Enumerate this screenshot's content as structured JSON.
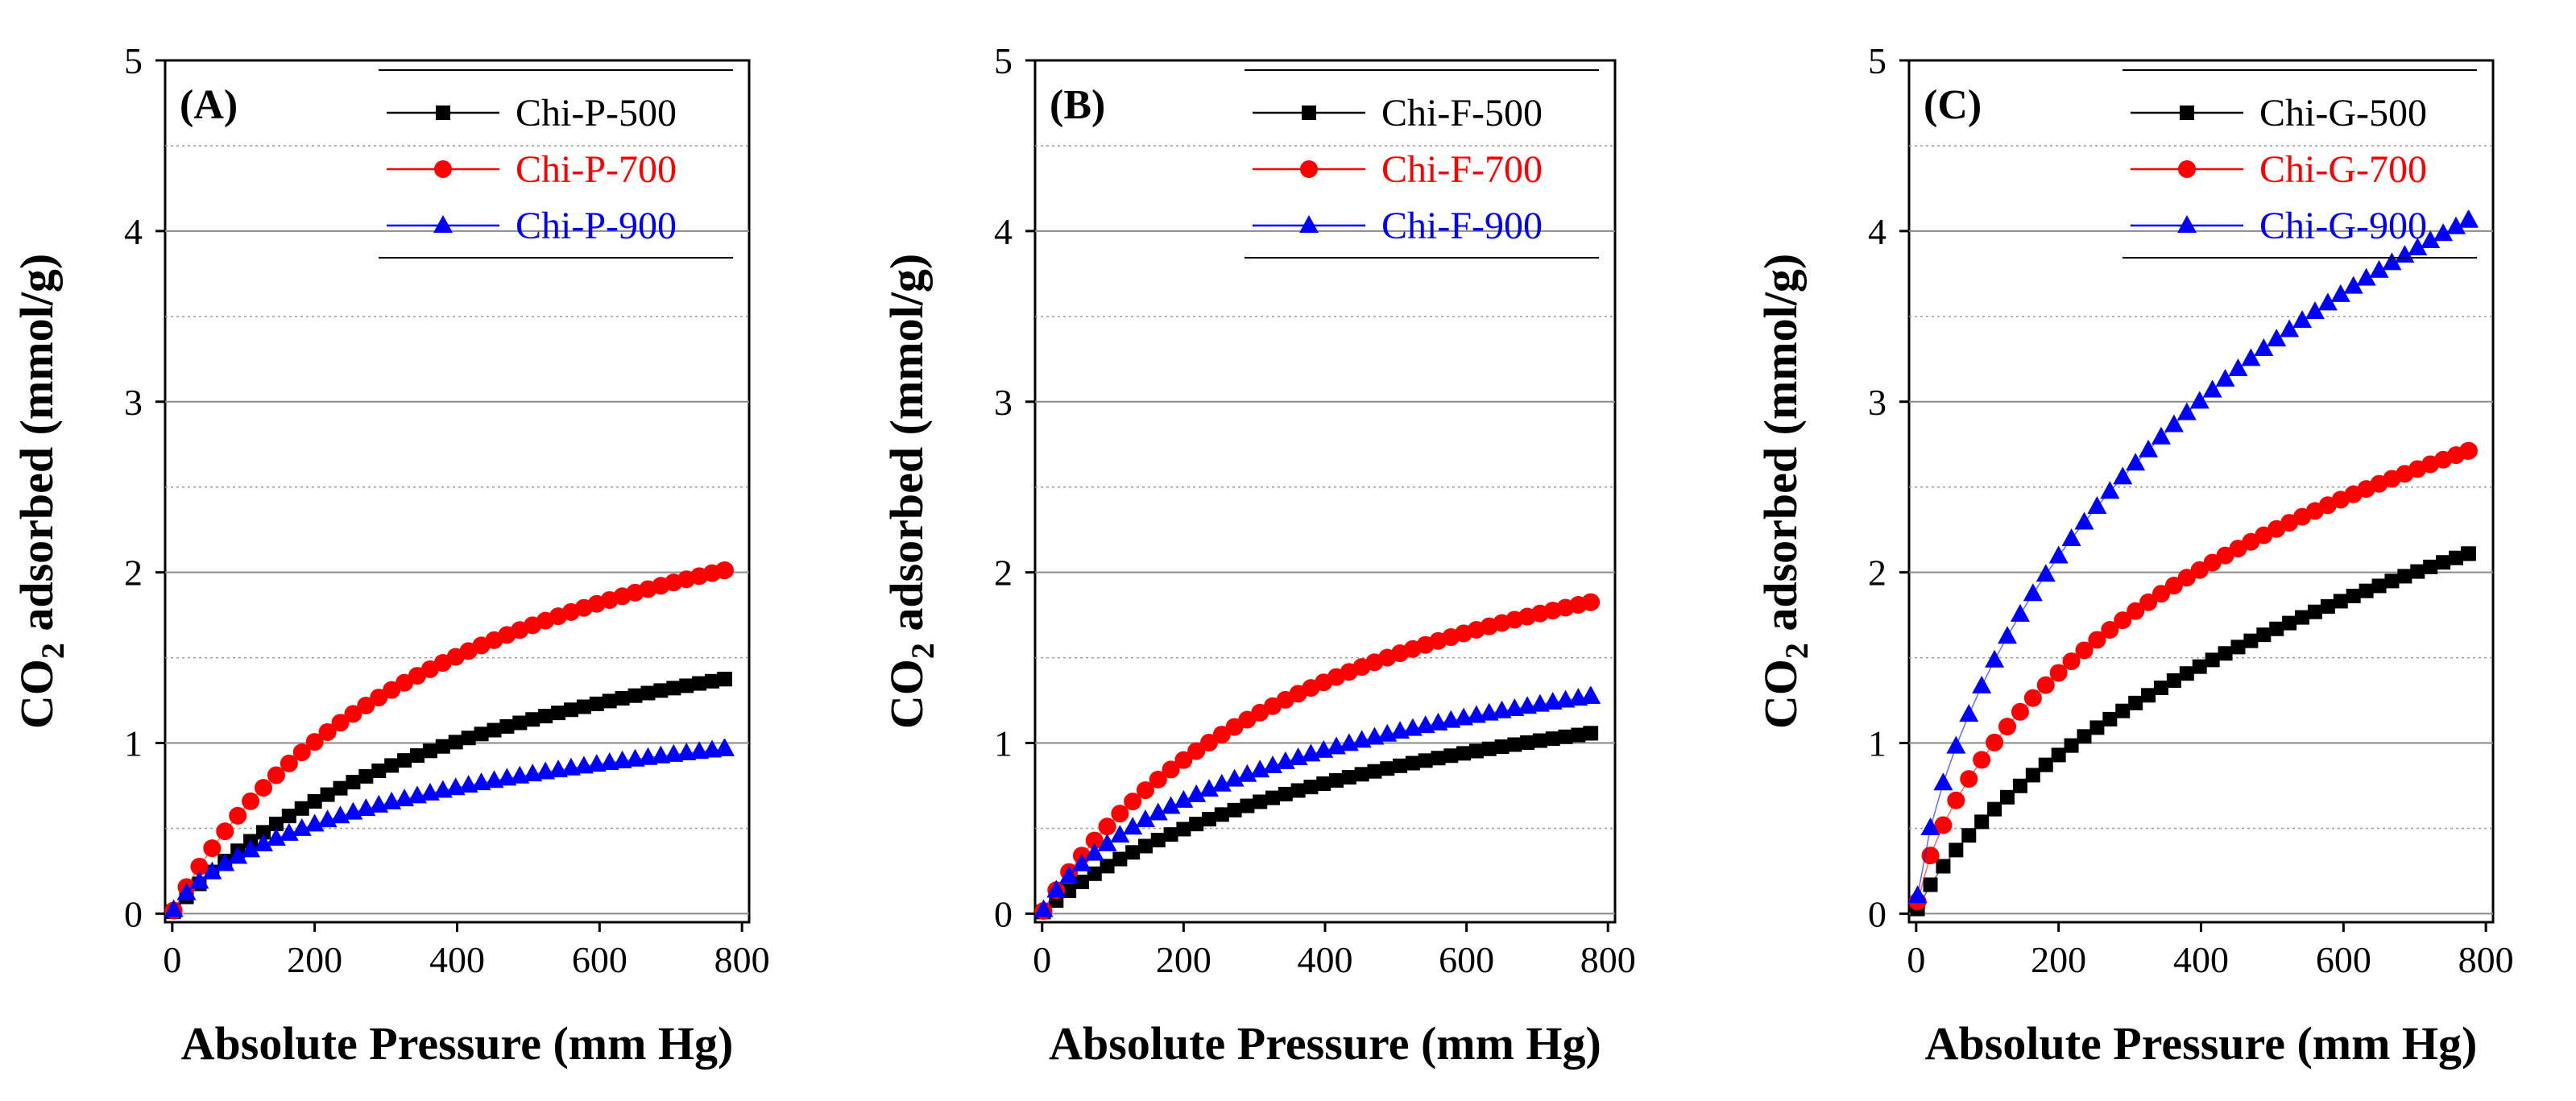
{
  "chart_data": [
    {
      "type": "scatter",
      "panel_label": "(A)",
      "xlabel": "Absolute Pressure (mm Hg)",
      "ylabel_prefix": "CO",
      "ylabel_sub": "2",
      "ylabel_suffix": " adsorbed (mmol/g)",
      "xlim": [
        -10,
        810
      ],
      "ylim": [
        -0.05,
        5
      ],
      "xticks": [
        0,
        200,
        400,
        600,
        800
      ],
      "yticks": [
        0,
        1,
        2,
        3,
        4,
        5
      ],
      "grid": "horizontal",
      "legend_position": "top-right",
      "series": [
        {
          "name": "Chi-P-500",
          "color": "#000000",
          "marker": "square",
          "qmax": 2.35,
          "b": 0.00185,
          "n": 0.95
        },
        {
          "name": "Chi-P-700",
          "color": "#ff0000",
          "marker": "circle",
          "qmax": 3.25,
          "b": 0.00215,
          "n": 0.95
        },
        {
          "name": "Chi-P-900",
          "color": "#0000ff",
          "marker": "triangle",
          "qmax": 1.85,
          "b": 0.00145,
          "n": 0.75
        }
      ]
    },
    {
      "type": "scatter",
      "panel_label": "(B)",
      "xlabel": "Absolute Pressure (mm Hg)",
      "ylabel_prefix": "CO",
      "ylabel_sub": "2",
      "ylabel_suffix": " adsorbed (mmol/g)",
      "xlim": [
        -10,
        810
      ],
      "ylim": [
        -0.05,
        5
      ],
      "xticks": [
        0,
        200,
        400,
        600,
        800
      ],
      "yticks": [
        0,
        1,
        2,
        3,
        4,
        5
      ],
      "grid": "horizontal",
      "legend_position": "top-right",
      "series": [
        {
          "name": "Chi-F-500",
          "color": "#000000",
          "marker": "square",
          "qmax": 1.95,
          "b": 0.00155,
          "n": 0.92
        },
        {
          "name": "Chi-F-700",
          "color": "#ff0000",
          "marker": "circle",
          "qmax": 3.0,
          "b": 0.00205,
          "n": 0.95
        },
        {
          "name": "Chi-F-900",
          "color": "#0000ff",
          "marker": "triangle",
          "qmax": 2.4,
          "b": 0.0015,
          "n": 0.8
        }
      ]
    },
    {
      "type": "scatter",
      "panel_label": "(C)",
      "xlabel": "Absolute Pressure (mm Hg)",
      "ylabel_prefix": "CO",
      "ylabel_sub": "2",
      "ylabel_suffix": " adsorbed (mmol/g)",
      "xlim": [
        -10,
        810
      ],
      "ylim": [
        -0.05,
        5
      ],
      "xticks": [
        0,
        200,
        400,
        600,
        800
      ],
      "yticks": [
        0,
        1,
        2,
        3,
        4,
        5
      ],
      "grid": "horizontal",
      "legend_position": "top-right",
      "series": [
        {
          "name": "Chi-G-500",
          "color": "#000000",
          "marker": "square",
          "qmax": 6.0,
          "b": 0.0006,
          "n": 0.8
        },
        {
          "name": "Chi-G-700",
          "color": "#ff0000",
          "marker": "circle",
          "qmax": 6.5,
          "b": 0.0008,
          "n": 0.7
        },
        {
          "name": "Chi-G-900",
          "color": "#0000ff",
          "marker": "triangle",
          "qmax": 10.0,
          "b": 0.00075,
          "n": 0.7
        }
      ]
    }
  ]
}
